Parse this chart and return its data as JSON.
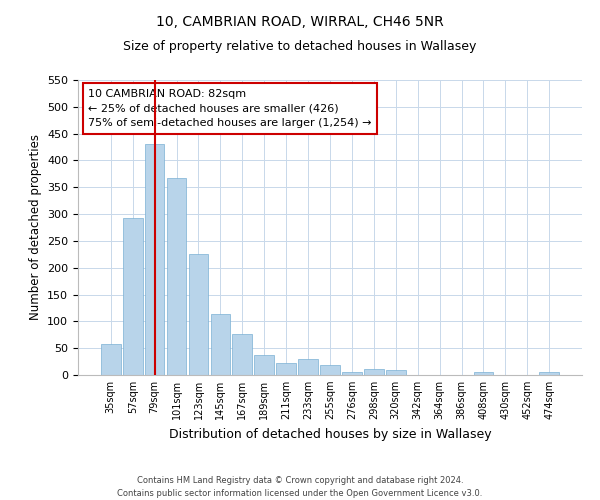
{
  "title": "10, CAMBRIAN ROAD, WIRRAL, CH46 5NR",
  "subtitle": "Size of property relative to detached houses in Wallasey",
  "xlabel": "Distribution of detached houses by size in Wallasey",
  "ylabel": "Number of detached properties",
  "bar_labels": [
    "35sqm",
    "57sqm",
    "79sqm",
    "101sqm",
    "123sqm",
    "145sqm",
    "167sqm",
    "189sqm",
    "211sqm",
    "233sqm",
    "255sqm",
    "276sqm",
    "298sqm",
    "320sqm",
    "342sqm",
    "364sqm",
    "386sqm",
    "408sqm",
    "430sqm",
    "452sqm",
    "474sqm"
  ],
  "bar_values": [
    57,
    293,
    430,
    368,
    226,
    113,
    76,
    38,
    22,
    29,
    18,
    5,
    12,
    9,
    0,
    0,
    0,
    6,
    0,
    0,
    5
  ],
  "bar_color": "#b8d4ea",
  "bar_edge_color": "#7ab0d4",
  "vline_x": 2,
  "vline_color": "#cc0000",
  "ylim": [
    0,
    550
  ],
  "yticks": [
    0,
    50,
    100,
    150,
    200,
    250,
    300,
    350,
    400,
    450,
    500,
    550
  ],
  "annotation_title": "10 CAMBRIAN ROAD: 82sqm",
  "annotation_line1": "← 25% of detached houses are smaller (426)",
  "annotation_line2": "75% of semi-detached houses are larger (1,254) →",
  "annotation_box_color": "#ffffff",
  "annotation_box_edge": "#cc0000",
  "footer_line1": "Contains HM Land Registry data © Crown copyright and database right 2024.",
  "footer_line2": "Contains public sector information licensed under the Open Government Licence v3.0.",
  "background_color": "#ffffff",
  "grid_color": "#c8d8ea",
  "title_fontsize": 10,
  "subtitle_fontsize": 9
}
